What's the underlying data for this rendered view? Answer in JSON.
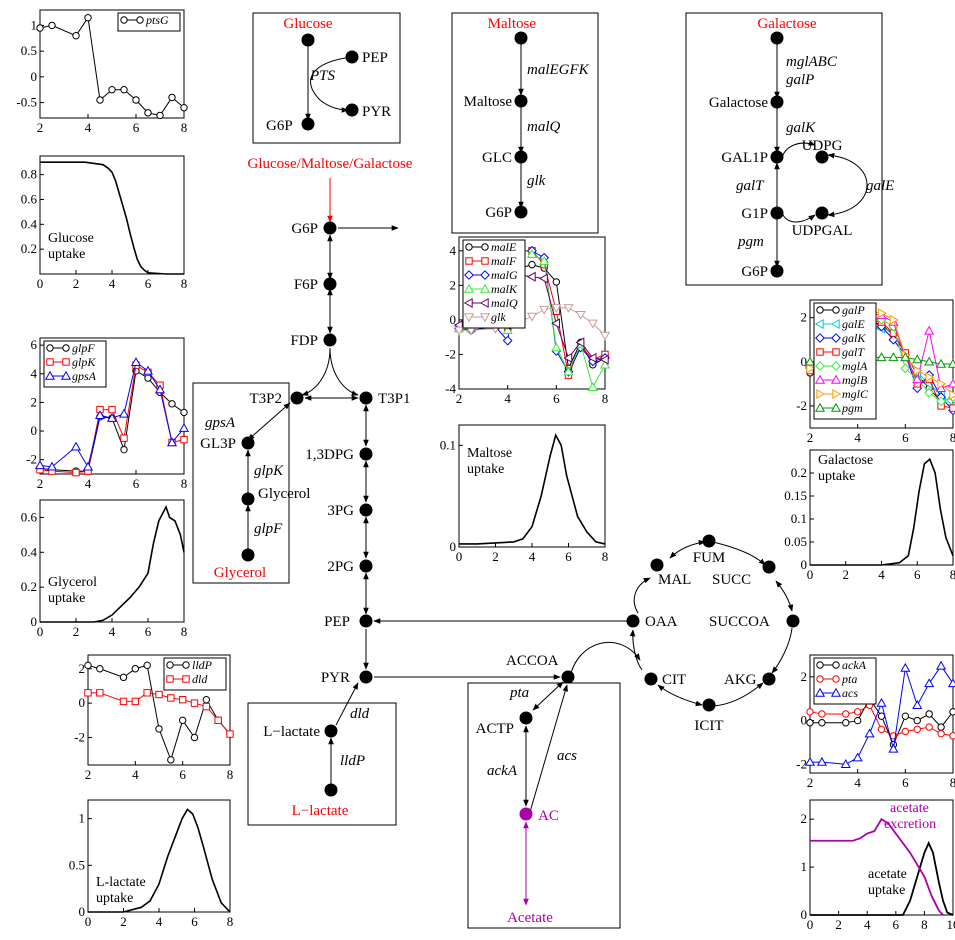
{
  "colors": {
    "black": "#000000",
    "red": "#ff0000",
    "purple": "#aa00aa",
    "blue": "#0000ff",
    "green": "#00cc00",
    "brown": "#996633",
    "pink": "#cc9999",
    "cyan": "#00cccc",
    "magenta": "#ff00ff",
    "orange": "#ff9900",
    "darkgreen": "#009900",
    "lightgreen": "#33ee33"
  },
  "nodes": {
    "g6p": "G6P",
    "f6p": "F6P",
    "fdp": "FDP",
    "t3p2": "T3P2",
    "t3p1": "T3P1",
    "bpg": "1,3DPG",
    "pg3": "3PG",
    "pg2": "2PG",
    "pep": "PEP",
    "pyr": "PYR",
    "accoa": "ACCOA",
    "actp": "ACTP",
    "ac": "AC",
    "acetate": "Acetate",
    "gl3p": "GL3P",
    "glycerol_mid": "Glycerol",
    "glycerol_in": "Glycerol",
    "llac_mid": "L−lactate",
    "llac_in": "L−lactate",
    "oaa": "OAA",
    "mal": "MAL",
    "fum": "FUM",
    "succ": "SUCC",
    "succoa": "SUCCOA",
    "akg": "AKG",
    "icit": "ICIT",
    "cit": "CIT",
    "main_input": "Glucose/Maltose/Galactose",
    "glc_in": "Glucose",
    "glc_pep": "PEP",
    "glc_pyr": "PYR",
    "glc_g6p": "G6P",
    "mal_in": "Maltose",
    "mal_mid": "Maltose",
    "mal_glc": "GLC",
    "mal_g6p": "G6P",
    "gal_in": "Galactose",
    "gal_mid": "Galactose",
    "gal1p": "GAL1P",
    "udpg": "UDPG",
    "g1p": "G1P",
    "udpgal": "UDPGAL",
    "gal_g6p": "G6P"
  },
  "enzymes": {
    "pts": "PTS",
    "malegfk": "malEGFK",
    "malq": "malQ",
    "glk": "glk",
    "mglabc": "mglABC",
    "galp": "galP",
    "galk": "galK",
    "galt": "galT",
    "gale": "galE",
    "pgm": "pgm",
    "gpsa": "gpsA",
    "glpk": "glpK",
    "glpf": "glpF",
    "dld": "dld",
    "lldp": "lldP",
    "pta": "pta",
    "acka": "ackA",
    "acs": "acs"
  },
  "charts": {
    "ptsg": {
      "legend": [
        "ptsG"
      ],
      "xticks": [
        "2",
        "4",
        "6",
        "8"
      ],
      "yticks": [
        "1",
        "0.5",
        "0",
        "-0.5"
      ]
    },
    "glucose": {
      "label1": "Glucose",
      "label2": "uptake",
      "xticks": [
        "0",
        "2",
        "4",
        "6",
        "8"
      ],
      "yticks": [
        "0.8",
        "0.6",
        "0.4",
        "0.2"
      ]
    },
    "glp": {
      "legend": [
        "glpF",
        "glpK",
        "gpsA"
      ],
      "xticks": [
        "2",
        "4",
        "6",
        "8"
      ],
      "yticks": [
        "6",
        "4",
        "2",
        "0",
        "-2"
      ]
    },
    "glycerol": {
      "label1": "Glycerol",
      "label2": "uptake",
      "xticks": [
        "0",
        "2",
        "4",
        "6",
        "8"
      ],
      "yticks": [
        "0.6",
        "0.4",
        "0.2",
        "0"
      ]
    },
    "lld": {
      "legend": [
        "lldP",
        "dld"
      ],
      "xticks": [
        "2",
        "4",
        "6",
        "8"
      ],
      "yticks": [
        "2",
        "0",
        "-2"
      ]
    },
    "llactate": {
      "label1": "L-lactate",
      "label2": "uptake",
      "xticks": [
        "0",
        "2",
        "4",
        "6",
        "8"
      ],
      "yticks": [
        "1",
        "0.5",
        "0"
      ]
    },
    "mal": {
      "legend": [
        "malE",
        "malF",
        "malG",
        "malK",
        "malQ",
        "glk"
      ],
      "xticks": [
        "2",
        "4",
        "6",
        "8"
      ],
      "yticks": [
        "4",
        "2",
        "0",
        "-2",
        "-4"
      ]
    },
    "maltose": {
      "label1": "Maltose",
      "label2": "uptake",
      "xticks": [
        "0",
        "2",
        "4",
        "6",
        "8"
      ],
      "yticks": [
        "0.1",
        "0"
      ]
    },
    "gal": {
      "legend": [
        "galP",
        "galE",
        "galK",
        "galT",
        "mglA",
        "mglB",
        "mglC",
        "pgm"
      ],
      "xticks": [
        "2",
        "4",
        "6",
        "8"
      ],
      "yticks": [
        "2",
        "0",
        "-2"
      ]
    },
    "galactose": {
      "label1": "Galactose",
      "label2": "uptake",
      "xticks": [
        "0",
        "2",
        "4",
        "6",
        "8"
      ],
      "yticks": [
        "0.2",
        "0.15",
        "0.1",
        "0.05",
        "0"
      ]
    },
    "ack": {
      "legend": [
        "ackA",
        "pta",
        "acs"
      ],
      "xticks": [
        "2",
        "4",
        "6",
        "8"
      ],
      "yticks": [
        "2",
        "0",
        "-2"
      ]
    },
    "acetate": {
      "label1": "acetate",
      "label2": "uptake",
      "label3": "acetate",
      "label4": "excretion",
      "xticks": [
        "0",
        "2",
        "4",
        "6",
        "8",
        "10"
      ],
      "yticks": [
        "2",
        "1",
        "0"
      ]
    }
  },
  "chart_data": [
    {
      "type": "line",
      "id": "ptsg",
      "x": [
        2,
        2.5,
        3.5,
        4,
        4.5,
        5,
        5.5,
        6,
        6.5,
        7,
        7.5,
        8
      ],
      "series": [
        {
          "name": "ptsG",
          "values": [
            0.95,
            1.0,
            0.8,
            1.15,
            -0.45,
            -0.25,
            -0.25,
            -0.45,
            -0.7,
            -0.75,
            -0.4,
            -0.6
          ]
        }
      ],
      "xlim": [
        2,
        8
      ],
      "ylim": [
        -0.8,
        1.3
      ]
    },
    {
      "type": "line",
      "id": "glucose",
      "x": [
        0,
        0.5,
        1,
        1.5,
        2,
        2.5,
        3,
        3.5,
        3.8,
        4,
        4.2,
        4.4,
        4.6,
        4.8,
        5,
        5.2,
        5.4,
        5.6,
        5.8,
        6,
        6.5,
        7,
        8
      ],
      "values": [
        0.9,
        0.9,
        0.9,
        0.9,
        0.9,
        0.9,
        0.89,
        0.88,
        0.85,
        0.82,
        0.75,
        0.65,
        0.55,
        0.45,
        0.33,
        0.22,
        0.12,
        0.06,
        0.03,
        0.01,
        0.005,
        0.0,
        0.0
      ],
      "xlim": [
        0,
        8
      ],
      "ylim": [
        0,
        0.95
      ]
    },
    {
      "type": "line",
      "id": "glp",
      "x": [
        2,
        2.5,
        3.5,
        4,
        4.5,
        5,
        5.5,
        6,
        6.5,
        7,
        7.5,
        8
      ],
      "series": [
        {
          "name": "glpF",
          "values": [
            -2.6,
            -2.7,
            -2.8,
            -2.8,
            1.0,
            0.9,
            -1.3,
            4.2,
            3.7,
            2.7,
            1.9,
            1.3
          ]
        },
        {
          "name": "glpK",
          "values": [
            -2.7,
            -2.8,
            -2.9,
            -2.8,
            1.5,
            1.5,
            -0.5,
            4.6,
            4.1,
            3.2,
            -0.8,
            -0.6
          ]
        },
        {
          "name": "gpsA",
          "values": [
            -2.4,
            -2.5,
            -1.1,
            -2.5,
            1.1,
            0.9,
            1.2,
            4.8,
            4.2,
            2.9,
            -0.8,
            0.2
          ]
        }
      ],
      "xlim": [
        2,
        8
      ],
      "ylim": [
        -3,
        6.5
      ]
    },
    {
      "type": "line",
      "id": "glycerol",
      "x": [
        0,
        1,
        2,
        3,
        3.5,
        4,
        4.5,
        5,
        5.5,
        6,
        6.3,
        6.6,
        7,
        7.2,
        7.5,
        7.8,
        8
      ],
      "values": [
        0,
        0,
        0,
        0,
        0.01,
        0.04,
        0.09,
        0.14,
        0.2,
        0.28,
        0.45,
        0.58,
        0.66,
        0.6,
        0.58,
        0.5,
        0.4
      ],
      "xlim": [
        0,
        8
      ],
      "ylim": [
        0,
        0.7
      ]
    },
    {
      "type": "line",
      "id": "lld",
      "x": [
        2,
        2.5,
        3.5,
        4,
        4.5,
        5,
        5.5,
        6,
        6.5,
        7,
        7.5,
        8
      ],
      "series": [
        {
          "name": "lldP",
          "values": [
            2.2,
            2.0,
            1.5,
            2.0,
            2.2,
            -1.5,
            -3.3,
            -1.0,
            -2.0,
            0.2,
            -1.0,
            -1.8
          ]
        },
        {
          "name": "dld",
          "values": [
            0.6,
            0.6,
            0.1,
            0.1,
            0.6,
            0.5,
            0.3,
            0.2,
            0.0,
            -0.2,
            -1.0,
            -1.8
          ]
        }
      ],
      "xlim": [
        2,
        8
      ],
      "ylim": [
        -3.6,
        2.8
      ]
    },
    {
      "type": "line",
      "id": "llactate",
      "x": [
        0,
        1,
        2,
        3,
        3.5,
        4,
        4.5,
        5,
        5.3,
        5.6,
        5.9,
        6.2,
        6.5,
        7,
        7.5,
        8
      ],
      "values": [
        0,
        0,
        0,
        0.05,
        0.12,
        0.3,
        0.6,
        0.85,
        1.0,
        1.1,
        1.05,
        0.9,
        0.7,
        0.35,
        0.1,
        0.0
      ],
      "xlim": [
        0,
        8
      ],
      "ylim": [
        0,
        1.2
      ]
    },
    {
      "type": "line",
      "id": "mal",
      "x": [
        2,
        2.5,
        3.5,
        4,
        4.5,
        5,
        5.5,
        6,
        6.5,
        7,
        7.5,
        8
      ],
      "series": [
        {
          "name": "malE",
          "values": [
            -0.4,
            -0.4,
            -0.2,
            -0.5,
            3.0,
            3.2,
            3.0,
            2.2,
            -2.8,
            -1.3,
            -2.6,
            -2.2
          ]
        },
        {
          "name": "malF",
          "values": [
            -0.5,
            -0.5,
            -0.3,
            -0.5,
            4.0,
            4.0,
            3.2,
            0.5,
            -3.2,
            -1.5,
            -2.3,
            -2.0
          ]
        },
        {
          "name": "malG",
          "values": [
            -0.5,
            -0.6,
            -0.4,
            -1.2,
            4.0,
            4.0,
            3.6,
            -1.8,
            -3.0,
            -1.6,
            -2.4,
            -2.2
          ]
        },
        {
          "name": "malK",
          "values": [
            -0.5,
            -0.5,
            -0.2,
            -0.6,
            4.2,
            3.8,
            3.4,
            -1.6,
            -3.0,
            -1.4,
            -3.9,
            -2.6
          ]
        },
        {
          "name": "malQ",
          "values": [
            -0.3,
            -0.4,
            -0.3,
            -0.3,
            2.6,
            2.5,
            2.4,
            -0.2,
            -2.2,
            -1.3,
            -2.2,
            -2.3
          ]
        },
        {
          "name": "glk",
          "values": [
            -0.6,
            -0.6,
            -0.5,
            -0.3,
            -0.1,
            0.2,
            0.6,
            0.7,
            0.7,
            0.3,
            -0.2,
            -0.9
          ]
        }
      ],
      "xlim": [
        2,
        8
      ],
      "ylim": [
        -4,
        4.8
      ]
    },
    {
      "type": "line",
      "id": "maltose",
      "x": [
        0,
        1,
        2,
        3,
        3.5,
        4,
        4.5,
        5,
        5.3,
        5.6,
        5.9,
        6.2,
        6.5,
        7,
        7.5,
        8
      ],
      "values": [
        0.003,
        0.003,
        0.004,
        0.005,
        0.008,
        0.02,
        0.05,
        0.09,
        0.11,
        0.1,
        0.07,
        0.05,
        0.03,
        0.015,
        0.005,
        0.003
      ],
      "xlim": [
        0,
        8
      ],
      "ylim": [
        0,
        0.12
      ]
    },
    {
      "type": "line",
      "id": "gal",
      "x": [
        2,
        2.5,
        3.5,
        4,
        4.5,
        5,
        5.5,
        6,
        6.5,
        7,
        7.5,
        8
      ],
      "series": [
        {
          "name": "galP",
          "values": [
            -0.5,
            -0.5,
            0.4,
            1.0,
            1.8,
            1.7,
            1.2,
            0.4,
            -0.6,
            -1.2,
            -1.8,
            -1.6
          ]
        },
        {
          "name": "galE",
          "values": [
            -0.3,
            -0.4,
            0.5,
            1.2,
            1.6,
            1.5,
            1.4,
            0.3,
            -0.5,
            -1.0,
            -1.5,
            -2.0
          ]
        },
        {
          "name": "galK",
          "values": [
            -0.2,
            -0.3,
            1.2,
            2.0,
            1.9,
            1.6,
            1.0,
            0.3,
            -1.2,
            -0.6,
            -1.6,
            -2.2
          ]
        },
        {
          "name": "galT",
          "values": [
            -0.4,
            -0.5,
            0.8,
            1.6,
            1.9,
            1.8,
            1.3,
            0.4,
            -1.0,
            -0.8,
            -2.0,
            -2.1
          ]
        },
        {
          "name": "mglA",
          "values": [
            -0.1,
            -0.2,
            0.4,
            1.4,
            2.0,
            1.9,
            1.6,
            -0.3,
            -0.8,
            -1.4,
            -1.8,
            -1.6
          ]
        },
        {
          "name": "mglB",
          "values": [
            -0.1,
            -0.3,
            0.3,
            1.3,
            2.2,
            2.1,
            1.8,
            0.2,
            -0.8,
            1.4,
            -1.2,
            -1.0
          ]
        },
        {
          "name": "mglC",
          "values": [
            -0.3,
            -0.4,
            0.3,
            1.2,
            2.3,
            2.2,
            1.9,
            0.3,
            -0.4,
            -0.7,
            -1.0,
            -1.5
          ]
        },
        {
          "name": "pgm",
          "values": [
            0.0,
            0.0,
            0.0,
            0.1,
            0.2,
            0.2,
            0.2,
            0.2,
            0.1,
            0.0,
            -0.1,
            -0.1
          ]
        }
      ],
      "xlim": [
        2,
        8
      ],
      "ylim": [
        -3,
        2.8
      ]
    },
    {
      "type": "line",
      "id": "galactose",
      "x": [
        0,
        1,
        2,
        3,
        4,
        5,
        5.5,
        5.8,
        6.1,
        6.4,
        6.7,
        7,
        7.3,
        7.6,
        8
      ],
      "values": [
        0,
        0,
        0,
        0,
        0,
        0.005,
        0.02,
        0.08,
        0.16,
        0.22,
        0.23,
        0.2,
        0.12,
        0.06,
        0.02
      ],
      "xlim": [
        0,
        8
      ],
      "ylim": [
        0,
        0.25
      ]
    },
    {
      "type": "line",
      "id": "ack",
      "x": [
        2,
        2.5,
        3.5,
        4,
        4.5,
        5,
        5.5,
        6,
        6.5,
        7,
        7.5,
        8
      ],
      "series": [
        {
          "name": "ackA",
          "values": [
            -0.1,
            -0.1,
            -0.1,
            0.0,
            1.0,
            0.2,
            -1.1,
            0.2,
            0.0,
            0.3,
            -0.3,
            0.4
          ]
        },
        {
          "name": "pta",
          "values": [
            0.4,
            0.3,
            0.3,
            0.4,
            0.7,
            -0.4,
            -0.7,
            -0.5,
            -0.4,
            -0.3,
            -0.6,
            -0.7
          ]
        },
        {
          "name": "acs",
          "values": [
            -1.9,
            -1.9,
            -2.0,
            -1.7,
            -0.6,
            0.8,
            -1.3,
            2.4,
            0.7,
            1.7,
            2.5,
            1.7
          ]
        }
      ],
      "xlim": [
        2,
        8
      ],
      "ylim": [
        -2.4,
        3.0
      ]
    },
    {
      "type": "line",
      "id": "acetate",
      "series": [
        {
          "name": "acetate uptake",
          "x": [
            0,
            6.5,
            7,
            7.5,
            8,
            8.3,
            8.6,
            9,
            9.3,
            9.6,
            10
          ],
          "values": [
            0,
            0,
            0.3,
            0.8,
            1.3,
            1.5,
            1.3,
            0.7,
            0.3,
            0.05,
            0
          ]
        },
        {
          "name": "acetate excretion",
          "x": [
            0,
            3,
            3.5,
            4,
            4.5,
            5,
            5.5,
            6,
            7,
            8,
            8.5,
            9,
            9.3
          ],
          "values": [
            1.55,
            1.55,
            1.6,
            1.7,
            1.75,
            2.0,
            1.9,
            1.7,
            1.3,
            0.8,
            0.4,
            0.1,
            0
          ]
        }
      ],
      "xlim": [
        0,
        10
      ],
      "ylim": [
        0,
        2.4
      ]
    }
  ]
}
